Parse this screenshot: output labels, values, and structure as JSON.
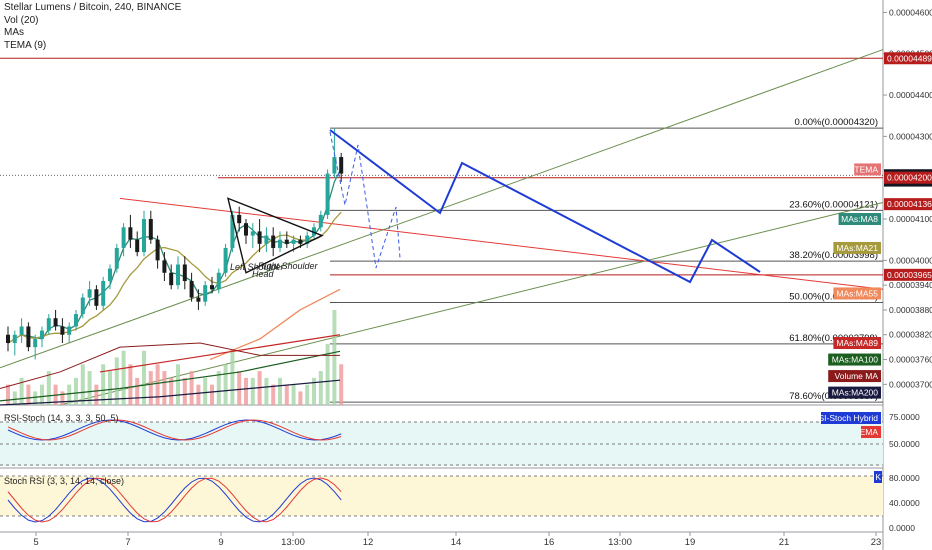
{
  "header": {
    "title": "Stellar Lumens / Bitcoin, 240, BINANCE",
    "lines": [
      "Vol (20)",
      "MAs",
      "TEMA (9)"
    ]
  },
  "chart_data": {
    "type": "candlestick",
    "symbol": "Stellar Lumens / Bitcoin",
    "interval": "240",
    "exchange": "BINANCE",
    "ylim": [
      3.65e-05,
      4.63e-05
    ],
    "yticks": [
      "0.00004600",
      "0.00004500",
      "0.00004400",
      "0.00004300",
      "0.00004100",
      "0.00004000",
      "0.00003940",
      "0.00003880",
      "0.00003820",
      "0.00003760",
      "0.00003700"
    ],
    "xticks": [
      "5",
      "7",
      "9",
      "13:00",
      "12",
      "14",
      "16",
      "13:00",
      "19",
      "21",
      "23"
    ],
    "candles": [
      [
        3.82e-05,
        3.84e-05,
        3.78e-05,
        3.8e-05
      ],
      [
        3.8e-05,
        3.83e-05,
        3.77e-05,
        3.82e-05
      ],
      [
        3.82e-05,
        3.86e-05,
        3.8e-05,
        3.84e-05
      ],
      [
        3.84e-05,
        3.85e-05,
        3.78e-05,
        3.79e-05
      ],
      [
        3.79e-05,
        3.82e-05,
        3.76e-05,
        3.81e-05
      ],
      [
        3.81e-05,
        3.84e-05,
        3.79e-05,
        3.83e-05
      ],
      [
        3.83e-05,
        3.87e-05,
        3.82e-05,
        3.86e-05
      ],
      [
        3.86e-05,
        3.88e-05,
        3.83e-05,
        3.84e-05
      ],
      [
        3.84e-05,
        3.86e-05,
        3.8e-05,
        3.82e-05
      ],
      [
        3.82e-05,
        3.85e-05,
        3.8e-05,
        3.84e-05
      ],
      [
        3.84e-05,
        3.88e-05,
        3.83e-05,
        3.87e-05
      ],
      [
        3.87e-05,
        3.92e-05,
        3.86e-05,
        3.91e-05
      ],
      [
        3.91e-05,
        3.95e-05,
        3.89e-05,
        3.93e-05
      ],
      [
        3.93e-05,
        3.94e-05,
        3.88e-05,
        3.89e-05
      ],
      [
        3.89e-05,
        3.96e-05,
        3.88e-05,
        3.95e-05
      ],
      [
        3.95e-05,
        3.99e-05,
        3.93e-05,
        3.98e-05
      ],
      [
        3.98e-05,
        4.04e-05,
        3.97e-05,
        4.03e-05
      ],
      [
        4.03e-05,
        4.09e-05,
        4.01e-05,
        4.08e-05
      ],
      [
        4.08e-05,
        4.11e-05,
        4.03e-05,
        4.05e-05
      ],
      [
        4.05e-05,
        4.07e-05,
        4.01e-05,
        4.02e-05
      ],
      [
        4.02e-05,
        4.12e-05,
        4.01e-05,
        4.1e-05
      ],
      [
        4.1e-05,
        4.12e-05,
        4.04e-05,
        4.05e-05
      ],
      [
        4.05e-05,
        4.06e-05,
        3.98e-05,
        4e-05
      ],
      [
        4e-05,
        4.02e-05,
        3.95e-05,
        3.97e-05
      ],
      [
        3.97e-05,
        3.99e-05,
        3.93e-05,
        3.94e-05
      ],
      [
        3.94e-05,
        4.01e-05,
        3.93e-05,
        3.99e-05
      ],
      [
        3.99e-05,
        4.01e-05,
        3.93e-05,
        3.95e-05
      ],
      [
        3.95e-05,
        3.97e-05,
        3.9e-05,
        3.91e-05
      ],
      [
        3.91e-05,
        3.93e-05,
        3.88e-05,
        3.9e-05
      ],
      [
        3.9e-05,
        3.95e-05,
        3.89e-05,
        3.94e-05
      ],
      [
        3.94e-05,
        3.96e-05,
        3.92e-05,
        3.93e-05
      ],
      [
        3.93e-05,
        3.98e-05,
        3.92e-05,
        3.97e-05
      ],
      [
        3.97e-05,
        4.04e-05,
        3.96e-05,
        4.03e-05
      ],
      [
        4.03e-05,
        4.12e-05,
        4.02e-05,
        4.11e-05
      ],
      [
        4.11e-05,
        4.13e-05,
        4.07e-05,
        4.09e-05
      ],
      [
        4.09e-05,
        4.1e-05,
        4.04e-05,
        4.06e-05
      ],
      [
        4.06e-05,
        4.09e-05,
        4.03e-05,
        4.07e-05
      ],
      [
        4.07e-05,
        4.1e-05,
        4.02e-05,
        4.04e-05
      ],
      [
        4.04e-05,
        4.08e-05,
        4.02e-05,
        4.06e-05
      ],
      [
        4.06e-05,
        4.08e-05,
        4.01e-05,
        4.03e-05
      ],
      [
        4.03e-05,
        4.07e-05,
        4.02e-05,
        4.05e-05
      ],
      [
        4.05e-05,
        4.07e-05,
        4.03e-05,
        4.04e-05
      ],
      [
        4.04e-05,
        4.06e-05,
        4.02e-05,
        4.05e-05
      ],
      [
        4.05e-05,
        4.06e-05,
        4.03e-05,
        4.04e-05
      ],
      [
        4.04e-05,
        4.07e-05,
        4.03e-05,
        4.06e-05
      ],
      [
        4.06e-05,
        4.09e-05,
        4.05e-05,
        4.08e-05
      ],
      [
        4.08e-05,
        4.12e-05,
        4.07e-05,
        4.11e-05
      ],
      [
        4.11e-05,
        4.22e-05,
        4.1e-05,
        4.21e-05
      ],
      [
        4.21e-05,
        4.32e-05,
        4.2e-05,
        4.25e-05
      ],
      [
        4.25e-05,
        4.26e-05,
        4.19e-05,
        4.21e-05
      ]
    ],
    "volume": [
      3,
      2,
      4,
      3,
      2,
      3,
      5,
      3,
      2,
      3,
      4,
      6,
      5,
      3,
      6,
      5,
      7,
      8,
      6,
      4,
      8,
      5,
      6,
      5,
      4,
      6,
      4,
      5,
      3,
      4,
      3,
      5,
      6,
      8,
      5,
      4,
      4,
      5,
      4,
      3,
      4,
      3,
      3,
      2,
      3,
      4,
      5,
      9,
      14,
      6
    ],
    "fibonacci": [
      {
        "label": "0.00%(0.00004320)",
        "price": 4.32e-05
      },
      {
        "label": "23.60%(0.00004121)",
        "price": 4.121e-05
      },
      {
        "label": "38.20%(0.00003998)",
        "price": 3.998e-05
      },
      {
        "label": "50.00%(0.00003898)",
        "price": 3.898e-05
      },
      {
        "label": "61.80%(0.00003798)",
        "price": 3.798e-05
      },
      {
        "label": "78.60%(0.00003657)",
        "price": 3.657e-05
      }
    ],
    "price_tags": [
      {
        "label": "0.00004489",
        "color": "#b71c1c",
        "price": 4.489e-05
      },
      {
        "label": "0.00004206",
        "color": "#131722",
        "price": 4.206e-05
      },
      {
        "label": "03:03:57",
        "color": "#131722",
        "price": 4.193e-05
      },
      {
        "label": "0.00004200",
        "color": "#b71c1c",
        "price": 4.2e-05
      },
      {
        "label": "0.00004136",
        "color": "#b71c1c",
        "price": 4.136e-05
      },
      {
        "label": "0.00003965",
        "color": "#b71c1c",
        "price": 3.965e-05
      }
    ],
    "indicator_tags": [
      {
        "label": "TEMA",
        "color": "#e57373",
        "price": 4.22e-05
      },
      {
        "label": "MAs:MA8",
        "color": "#2e8b7a",
        "price": 4.1e-05
      },
      {
        "label": "MAs:MA21",
        "color": "#a59a3c",
        "price": 4.03e-05
      },
      {
        "label": "MAs:MA55",
        "color": "#f08a5d",
        "price": 3.92e-05
      },
      {
        "label": "MAs:MA89",
        "color": "#c62828",
        "price": 3.8e-05
      },
      {
        "label": "MAs:MA100",
        "color": "#1b5e20",
        "price": 3.76e-05
      },
      {
        "label": "Volume MA",
        "color": "#8b1a1a",
        "price": 3.72e-05
      },
      {
        "label": "MAs:MA200",
        "color": "#1a1a40",
        "price": 3.68e-05
      }
    ],
    "patterns": {
      "left": "Left Shoulder",
      "right": "Right Shoulder",
      "head": "Head"
    },
    "oscillators": [
      {
        "name": "RSI-Stoch (14, 3, 3, 3, 50, 5)",
        "tag": "RSI-Stoch Hybrid",
        "tag2": "EMA",
        "levels": [
          "75.0000",
          "50.0000"
        ]
      },
      {
        "name": "Stoch RSI (3, 3, 14, 14, close)",
        "tag": "K",
        "levels": [
          "80.0000",
          "40.0000",
          "0.0000"
        ]
      }
    ]
  }
}
